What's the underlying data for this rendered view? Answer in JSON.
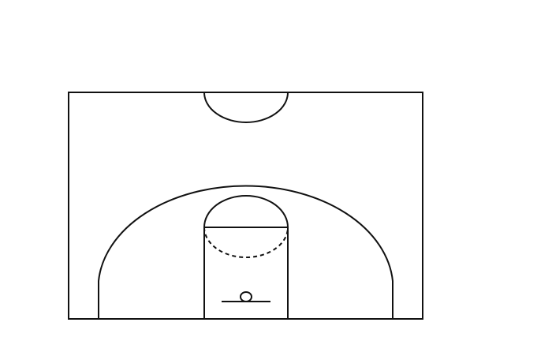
{
  "diagram": {
    "type": "half-court",
    "sport": "basketball",
    "colors": {
      "background": "#ffffff",
      "line": "#111111"
    },
    "elements": [
      "court-boundary",
      "center-circle-half",
      "three-point-arc",
      "free-throw-lane",
      "free-throw-circle-top",
      "free-throw-circle-bottom-dashed",
      "backboard",
      "hoop"
    ]
  }
}
